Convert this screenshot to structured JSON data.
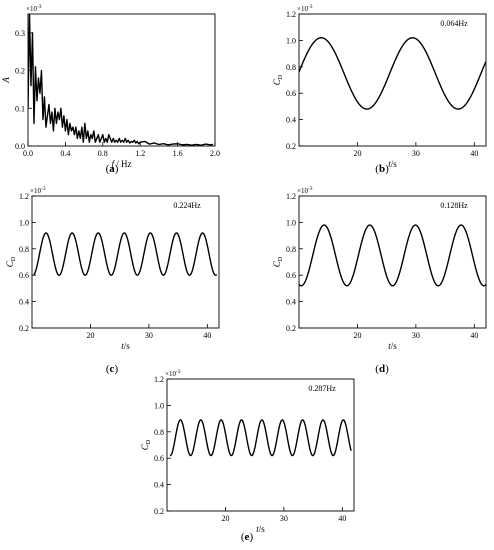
{
  "chart_data": [
    {
      "id": "a",
      "type": "line",
      "panel_label": "a",
      "xlabel_var": "f",
      "xlabel_unit": " / Hz",
      "ylabel_var": "A",
      "multiplier": "×10",
      "multiplier_exp": "-3",
      "xlim": [
        0,
        2.0
      ],
      "ylim": [
        0,
        0.35
      ],
      "xticks": [
        0.0,
        0.4,
        0.8,
        1.2,
        1.6,
        2.0
      ],
      "xtick_labels": [
        "0.0",
        "0.4",
        "0.8",
        "1.2",
        "1.6",
        "2.0"
      ],
      "yticks": [
        0.0,
        0.1,
        0.2,
        0.3
      ],
      "ytick_labels": [
        "0.0",
        "0.1",
        "0.2",
        "0.3"
      ],
      "series": [
        {
          "x": [
            0.0,
            0.016,
            0.032,
            0.048,
            0.064,
            0.08,
            0.096,
            0.112,
            0.128,
            0.144,
            0.16,
            0.176,
            0.192,
            0.208,
            0.224,
            0.24,
            0.256,
            0.272,
            0.288,
            0.304,
            0.32,
            0.336,
            0.352,
            0.368,
            0.384,
            0.4,
            0.416,
            0.432,
            0.448,
            0.464,
            0.48,
            0.496,
            0.512,
            0.528,
            0.544,
            0.56,
            0.576,
            0.592,
            0.608,
            0.624,
            0.64,
            0.656,
            0.672,
            0.688,
            0.704,
            0.72,
            0.736,
            0.752,
            0.768,
            0.784,
            0.8,
            0.816,
            0.832,
            0.848,
            0.864,
            0.88,
            0.896,
            0.912,
            0.928,
            0.944,
            0.96,
            0.976,
            0.992,
            1.008,
            1.024,
            1.04,
            1.056,
            1.072,
            1.088,
            1.104,
            1.12,
            1.136,
            1.152,
            1.168,
            1.184,
            1.2,
            1.25,
            1.3,
            1.35,
            1.4,
            1.45,
            1.5,
            1.55,
            1.6,
            1.65,
            1.7,
            1.75,
            1.8,
            1.85,
            1.9,
            1.95,
            1.98
          ],
          "y": [
            0.1,
            0.35,
            0.16,
            0.3,
            0.06,
            0.21,
            0.12,
            0.18,
            0.14,
            0.2,
            0.07,
            0.13,
            0.05,
            0.08,
            0.11,
            0.06,
            0.09,
            0.04,
            0.1,
            0.06,
            0.09,
            0.07,
            0.1,
            0.05,
            0.08,
            0.04,
            0.07,
            0.03,
            0.06,
            0.04,
            0.05,
            0.03,
            0.05,
            0.02,
            0.04,
            0.02,
            0.05,
            0.01,
            0.06,
            0.02,
            0.04,
            0.01,
            0.03,
            0.02,
            0.04,
            0.01,
            0.02,
            0.03,
            0.01,
            0.02,
            0.03,
            0.01,
            0.02,
            0.01,
            0.03,
            0.02,
            0.01,
            0.02,
            0.01,
            0.015,
            0.01,
            0.02,
            0.01,
            0.015,
            0.01,
            0.02,
            0.01,
            0.015,
            0.008,
            0.012,
            0.01,
            0.015,
            0.008,
            0.012,
            0.006,
            0.01,
            0.012,
            0.005,
            0.008,
            0.004,
            0.006,
            0.003,
            0.005,
            0.006,
            0.003,
            0.004,
            0.002,
            0.004,
            0.002,
            0.005,
            0.003,
            0.004
          ]
        }
      ]
    },
    {
      "id": "b",
      "type": "line",
      "panel_label": "b",
      "annotation": "0.064Hz",
      "xlabel_var": "t",
      "xlabel_unit": "/s",
      "ylabel_var": "C",
      "ylabel_sub": "D",
      "multiplier": "×10",
      "multiplier_exp": "-3",
      "xlim": [
        10,
        42
      ],
      "ylim": [
        0.2,
        1.2
      ],
      "xticks": [
        20,
        30,
        40
      ],
      "xtick_labels": [
        "20",
        "30",
        "40"
      ],
      "yticks": [
        0.2,
        0.4,
        0.6,
        0.8,
        1.0,
        1.2
      ],
      "ytick_labels": [
        "0.2",
        "0.4",
        "0.6",
        "0.8",
        "1.0",
        "1.2"
      ],
      "signal": {
        "frequency_hz": 0.064,
        "mean": 0.75,
        "amplitude": 0.27,
        "peak_t": 13.8,
        "t_start": 10,
        "t_end": 42
      }
    },
    {
      "id": "c",
      "type": "line",
      "panel_label": "c",
      "annotation": "0.224Hz",
      "xlabel_var": "t",
      "xlabel_unit": "/s",
      "ylabel_var": "C",
      "ylabel_sub": "D",
      "multiplier": "×10",
      "multiplier_exp": "-3",
      "xlim": [
        10,
        42
      ],
      "ylim": [
        0.2,
        1.2
      ],
      "xticks": [
        20,
        30,
        40
      ],
      "xtick_labels": [
        "20",
        "30",
        "40"
      ],
      "yticks": [
        0.2,
        0.4,
        0.6,
        0.8,
        1.0,
        1.2
      ],
      "ytick_labels": [
        "0.2",
        "0.4",
        "0.6",
        "0.8",
        "1.0",
        "1.2"
      ],
      "signal": {
        "frequency_hz": 0.224,
        "mean": 0.76,
        "amplitude": 0.16,
        "peak_t": 12.4,
        "t_start": 10.3,
        "t_end": 41.6
      }
    },
    {
      "id": "d",
      "type": "line",
      "panel_label": "d",
      "annotation": "0.128Hz",
      "xlabel_var": "t",
      "xlabel_unit": "/s",
      "ylabel_var": "C",
      "ylabel_sub": "D",
      "multiplier": "×10",
      "multiplier_exp": "-3",
      "xlim": [
        10,
        42
      ],
      "ylim": [
        0.2,
        1.2
      ],
      "xticks": [
        20,
        30,
        40
      ],
      "xtick_labels": [
        "20",
        "30",
        "40"
      ],
      "yticks": [
        0.2,
        0.4,
        0.6,
        0.8,
        1.0,
        1.2
      ],
      "ytick_labels": [
        "0.2",
        "0.4",
        "0.6",
        "0.8",
        "1.0",
        "1.2"
      ],
      "signal": {
        "frequency_hz": 0.128,
        "mean": 0.75,
        "amplitude": 0.23,
        "peak_t": 14.3,
        "t_start": 10,
        "t_end": 42
      }
    },
    {
      "id": "e",
      "type": "line",
      "panel_label": "e",
      "annotation": "0.287Hz",
      "xlabel_var": "t",
      "xlabel_unit": "/s",
      "ylabel_var": "C",
      "ylabel_sub": "D",
      "multiplier": "×10",
      "multiplier_exp": "-3",
      "xlim": [
        10,
        42
      ],
      "ylim": [
        0.2,
        1.2
      ],
      "xticks": [
        20,
        30,
        40
      ],
      "xtick_labels": [
        "20",
        "30",
        "40"
      ],
      "yticks": [
        0.2,
        0.4,
        0.6,
        0.8,
        1.0,
        1.2
      ],
      "ytick_labels": [
        "0.2",
        "0.4",
        "0.6",
        "0.8",
        "1.0",
        "1.2"
      ],
      "signal": {
        "frequency_hz": 0.287,
        "mean": 0.755,
        "amplitude": 0.135,
        "peak_t": 12.3,
        "t_start": 10.5,
        "t_end": 41.5
      }
    }
  ]
}
